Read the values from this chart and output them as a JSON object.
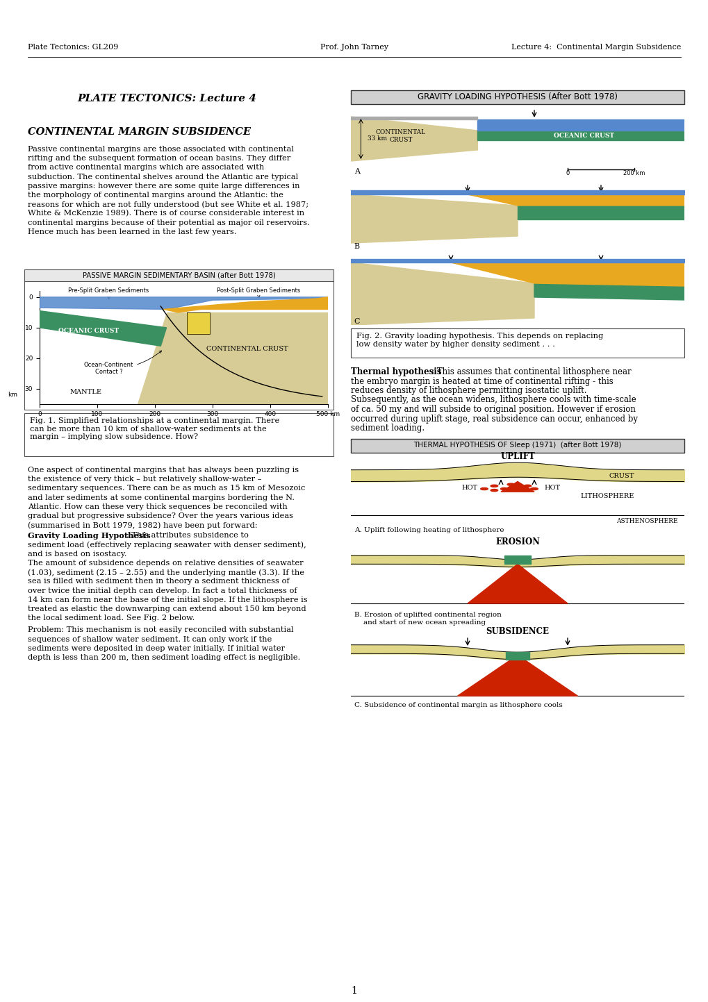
{
  "header_left": "Plate Tectonics: GL209",
  "header_center": "Prof. John Tarney",
  "header_right": "Lecture 4:  Continental Margin Subsidence",
  "title_left": "PLATE TECTONICS: Lecture 4",
  "section_title": "CONTINENTAL MARGIN SUBSIDENCE",
  "para1": "Passive continental margins are those associated with continental\nrifting and the subsequent formation of ocean basins. They differ\nfrom active continental margins which are associated with\nsubduction. The continental shelves around the Atlantic are typical\npassive margins: however there are some quite large differences in\nthe morphology of continental margins around the Atlantic: the\nreasons for which are not fully understood (but see White et al. 1987;\nWhite & McKenzie 1989). There is of course considerable interest in\ncontinental margins because of their potential as major oil reservoirs.\nHence much has been learned in the last few years.",
  "fig1_caption": "Fig. 1. Simplified relationships at a continental margin. There\ncan be more than 10 km of shallow-water sediments at the\nmargin – implying slow subsidence. How?",
  "fig1_title": "PASSIVE MARGIN SEDIMENTARY BASIN (after Bott 1978)",
  "para2": "One aspect of continental margins that has always been puzzling is\nthe existence of very thick – but relatively shallow-water –\nsedimentary sequences. There can be as much as 15 km of Mesozoic\nand later sediments at some continental margins bordering the N.\nAtlantic. How can these very thick sequences be reconciled with\ngradual but progressive subsidence? Over the years various ideas\n(summarised in Bott 1979, 1982) have been put forward:",
  "gravity_title": "Gravity Loading Hypothesis",
  "gravity_text1": ": This attributes subsidence to",
  "gravity_text2": "sediment load (effectively replacing seawater with denser sediment),\nand is based on isostacy.\nThe amount of subsidence depends on relative densities of seawater\n(1.03), sediment (2.15 – 2.55) and the underlying mantle (3.3). If the\nsea is filled with sediment then in theory a sediment thickness of\nover twice the initial depth can develop. In fact a total thickness of\n14 km can form near the base of the initial slope. If the lithosphere is\ntreated as elastic the downwarping can extend about 150 km beyond\nthe local sediment load. See Fig. 2 below.",
  "gravity_problem": "Problem: This mechanism is not easily reconciled with substantial\nsequences of shallow water sediment. It can only work if the\nsediments were deposited in deep water initially. If initial water\ndepth is less than 200 m, then sediment loading effect is negligible.",
  "gravity_loading_title": "GRAVITY LOADING HYPOTHESIS (After Bott 1978)",
  "fig2_caption": "Fig. 2. Gravity loading hypothesis. This depends on replacing\nlow density water by higher density sediment . . .",
  "thermal_title": "Thermal hypothesis",
  "thermal_text1": ": This assumes that continental lithosphere near",
  "thermal_text2": "the embryo margin is heated at time of continental rifting - this\nreduces density of lithosphere permitting isostatic uplift.\nSubsequently, as the ocean widens, lithosphere cools with time-scale\nof ca. 50 my and will subside to original position. However if erosion\noccurred during uplift stage, real subsidence can occur, enhanced by\nsediment loading.",
  "thermal_hyp_title": "THERMAL HYPOTHESIS OF Sleep (1971)  (after Bott 1978)",
  "thermal_A_label": "A. Uplift following heating of lithosphere",
  "thermal_B_label": "B. Erosion of uplifted continental region\n    and start of new ocean spreading",
  "thermal_C_label": "C. Subsidence of continental margin as lithosphere cools",
  "page_number": "1",
  "bg": "#ffffff",
  "oceanic_color": "#3a9060",
  "continental_color": "#d8cc96",
  "blue_water": "#5588cc",
  "gold_sed": "#e8a820",
  "yellow_graben": "#e8d040",
  "red_color": "#cc2200",
  "green_ocean": "#3a9060",
  "dark_line": "#222222",
  "fig_bg": "#f8f8f0"
}
